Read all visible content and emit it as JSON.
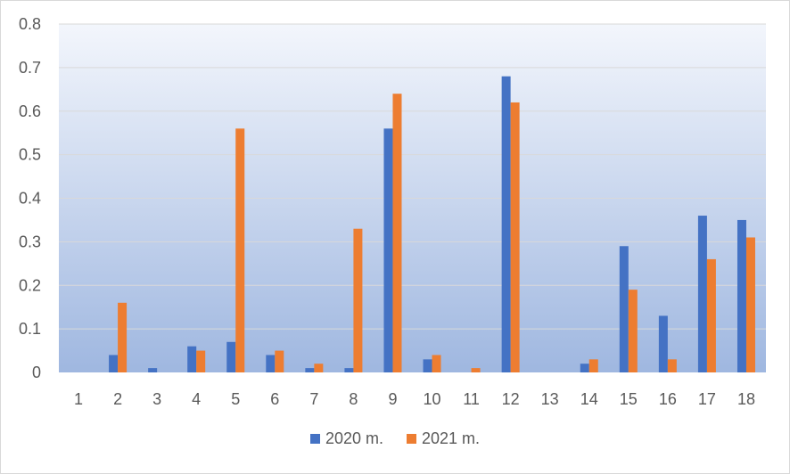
{
  "chart_data": {
    "type": "bar",
    "categories": [
      "1",
      "2",
      "3",
      "4",
      "5",
      "6",
      "7",
      "8",
      "9",
      "10",
      "11",
      "12",
      "13",
      "14",
      "15",
      "16",
      "17",
      "18"
    ],
    "series": [
      {
        "name": "2020 m.",
        "color": "#4472c4",
        "values": [
          0,
          0.04,
          0.01,
          0.06,
          0.07,
          0.04,
          0.01,
          0.01,
          0.56,
          0.03,
          0,
          0.68,
          0,
          0.02,
          0.29,
          0.13,
          0.36,
          0.35
        ]
      },
      {
        "name": "2021 m.",
        "color": "#ed7d31",
        "values": [
          0,
          0.16,
          0,
          0.05,
          0.56,
          0.05,
          0.02,
          0.33,
          0.64,
          0.04,
          0.01,
          0.62,
          0,
          0.03,
          0.19,
          0.03,
          0.26,
          0.31
        ]
      }
    ],
    "ylim": [
      0,
      0.8
    ],
    "yticks": [
      "0",
      "0.1",
      "0.2",
      "0.3",
      "0.4",
      "0.5",
      "0.6",
      "0.7",
      "0.8"
    ],
    "grid": true,
    "legend_position": "bottom",
    "plot_background": "gradient-blue"
  }
}
